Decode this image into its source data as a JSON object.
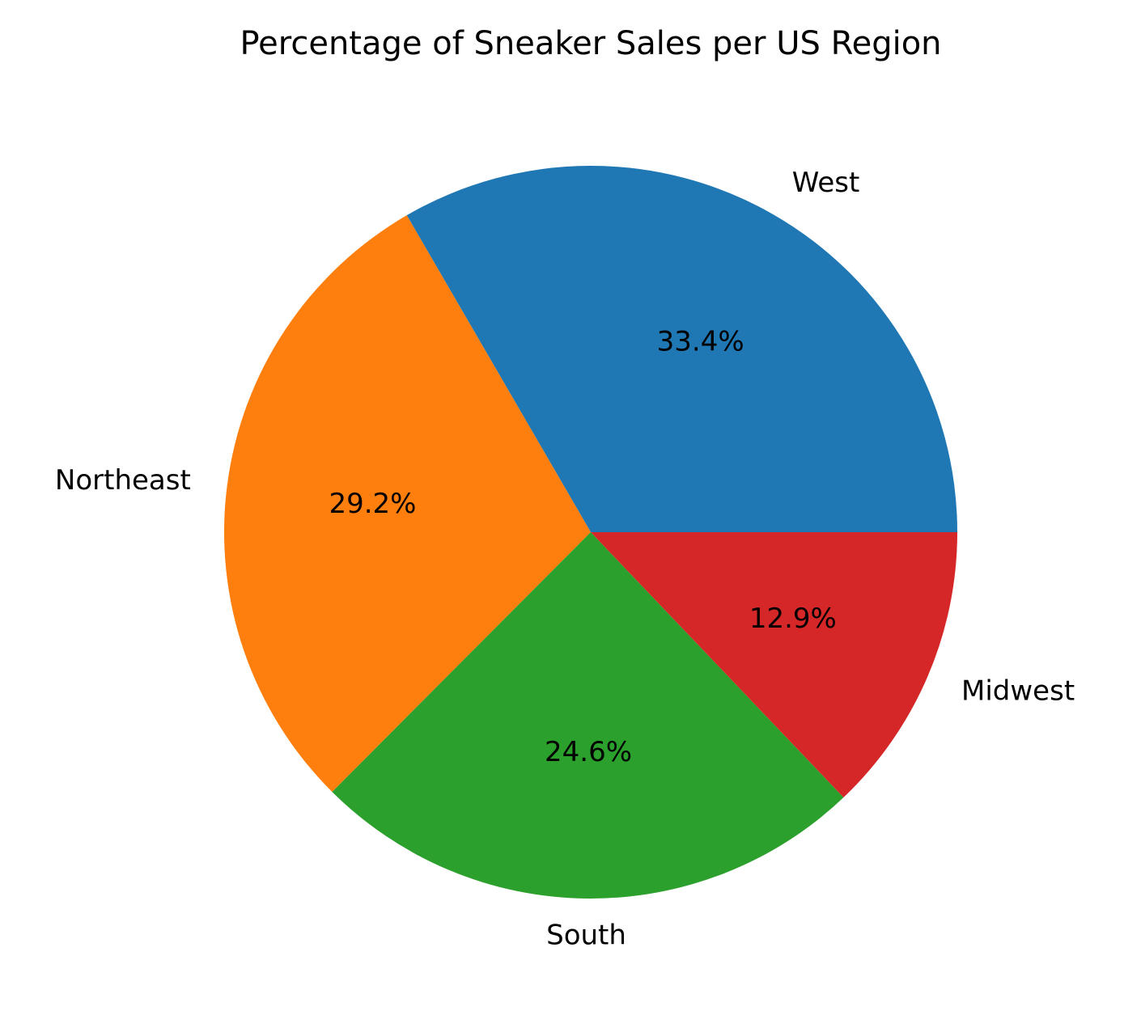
{
  "chart_data": {
    "type": "pie",
    "title": "Percentage of Sneaker Sales per US Region",
    "categories": [
      "West",
      "Northeast",
      "South",
      "Midwest"
    ],
    "values": [
      33.4,
      29.2,
      24.6,
      12.9
    ],
    "labels": [
      "33.4%",
      "29.2%",
      "24.6%",
      "12.9%"
    ],
    "colors": [
      "#1f77b4",
      "#ff7f0e",
      "#2ca02c",
      "#d62728"
    ],
    "start_angle_deg": 0,
    "direction": "counterclockwise",
    "legend": "none"
  }
}
